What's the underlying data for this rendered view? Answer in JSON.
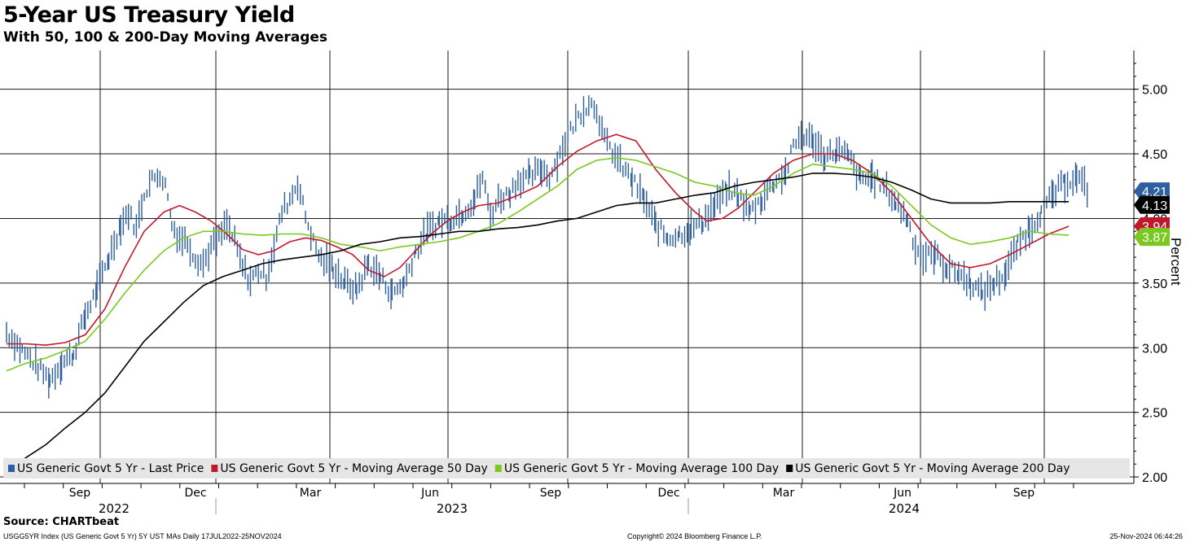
{
  "header": {
    "title": "5-Year US Treasury Yield",
    "subtitle": "With 50, 100 & 200-Day Moving Averages"
  },
  "footer": {
    "source": "Source: CHARTbeat",
    "index_info": "USGG5YR Index (US Generic Govt 5 Yr) 5Y UST MAs  Daily 17JUL2022-25NOV2024",
    "copyright": "Copyright© 2024 Bloomberg Finance L.P.",
    "timestamp": "25-Nov-2024 06:44:26"
  },
  "colors": {
    "price": "#2e5f9e",
    "ma50": "#c0192d",
    "ma100": "#7bc820",
    "ma200": "#000000",
    "grid": "#1a1a1a",
    "legend_bg": "#e6e6e6"
  },
  "chart_data": {
    "type": "line",
    "title": "5-Year US Treasury Yield",
    "subtitle": "With 50, 100 & 200-Day Moving Averages",
    "ylabel": "Percent",
    "ylim": [
      1.95,
      5.3
    ],
    "yticks": [
      2.0,
      2.5,
      3.0,
      3.5,
      4.0,
      4.5,
      5.0
    ],
    "ytick_labels": [
      "2.00",
      "2.50",
      "3.00",
      "3.50",
      "4.00",
      "4.50",
      "5.00"
    ],
    "x_range": [
      "2022-07-17",
      "2024-11-25"
    ],
    "x_month_ticks": [
      "Aug",
      "Sep",
      "Oct",
      "Nov",
      "Dec",
      "Jan",
      "Feb",
      "Mar",
      "Apr",
      "May",
      "Jun",
      "Jul",
      "Aug",
      "Sep",
      "Oct",
      "Nov",
      "Dec",
      "Jan",
      "Feb",
      "Mar",
      "Apr",
      "May",
      "Jun",
      "Jul",
      "Aug",
      "Sep",
      "Oct",
      "Nov"
    ],
    "x_month_labels": [
      "Sep",
      "Dec",
      "Mar",
      "Jun",
      "Sep",
      "Dec",
      "Mar",
      "Jun",
      "Sep"
    ],
    "x_years": [
      "2022",
      "2023",
      "2024"
    ],
    "legend_position": "bottom",
    "series": [
      {
        "name": "US Generic Govt 5 Yr - Last Price",
        "key": "price",
        "style": "bar",
        "last_value": "4.21",
        "points": [
          [
            0,
            3.12
          ],
          [
            0.4,
            2.98
          ],
          [
            0.8,
            2.85
          ],
          [
            1.1,
            2.75
          ],
          [
            1.4,
            2.88
          ],
          [
            1.7,
            2.95
          ],
          [
            2.0,
            3.25
          ],
          [
            2.3,
            3.45
          ],
          [
            2.6,
            3.7
          ],
          [
            2.9,
            3.95
          ],
          [
            3.1,
            4.05
          ],
          [
            3.3,
            3.92
          ],
          [
            3.5,
            4.2
          ],
          [
            3.7,
            4.3
          ],
          [
            3.9,
            4.35
          ],
          [
            4.1,
            4.2
          ],
          [
            4.2,
            3.95
          ],
          [
            4.4,
            3.85
          ],
          [
            4.6,
            3.82
          ],
          [
            4.8,
            3.7
          ],
          [
            5.0,
            3.65
          ],
          [
            5.2,
            3.78
          ],
          [
            5.4,
            3.85
          ],
          [
            5.6,
            3.95
          ],
          [
            5.8,
            3.82
          ],
          [
            6.0,
            3.62
          ],
          [
            6.2,
            3.52
          ],
          [
            6.4,
            3.6
          ],
          [
            6.6,
            3.55
          ],
          [
            6.8,
            3.78
          ],
          [
            7.0,
            4.05
          ],
          [
            7.2,
            4.15
          ],
          [
            7.4,
            4.28
          ],
          [
            7.6,
            4.02
          ],
          [
            7.8,
            3.82
          ],
          [
            8.0,
            3.68
          ],
          [
            8.3,
            3.62
          ],
          [
            8.6,
            3.5
          ],
          [
            8.9,
            3.45
          ],
          [
            9.2,
            3.65
          ],
          [
            9.5,
            3.55
          ],
          [
            9.8,
            3.42
          ],
          [
            10.1,
            3.5
          ],
          [
            10.4,
            3.75
          ],
          [
            10.7,
            3.9
          ],
          [
            11.0,
            3.98
          ],
          [
            11.3,
            4.0
          ],
          [
            11.6,
            4.05
          ],
          [
            11.9,
            4.15
          ],
          [
            12.1,
            4.32
          ],
          [
            12.3,
            4.02
          ],
          [
            12.5,
            4.15
          ],
          [
            12.8,
            4.2
          ],
          [
            13.0,
            4.3
          ],
          [
            13.3,
            4.32
          ],
          [
            13.6,
            4.38
          ],
          [
            13.8,
            4.33
          ],
          [
            14.0,
            4.45
          ],
          [
            14.2,
            4.6
          ],
          [
            14.4,
            4.72
          ],
          [
            14.6,
            4.82
          ],
          [
            14.8,
            4.9
          ],
          [
            15.0,
            4.85
          ],
          [
            15.2,
            4.6
          ],
          [
            15.4,
            4.52
          ],
          [
            15.6,
            4.42
          ],
          [
            15.9,
            4.3
          ],
          [
            16.2,
            4.15
          ],
          [
            16.5,
            3.95
          ],
          [
            16.8,
            3.85
          ],
          [
            17.1,
            3.88
          ],
          [
            17.4,
            3.92
          ],
          [
            17.7,
            3.98
          ],
          [
            18.0,
            4.1
          ],
          [
            18.3,
            4.22
          ],
          [
            18.6,
            4.18
          ],
          [
            18.9,
            4.05
          ],
          [
            19.2,
            4.15
          ],
          [
            19.5,
            4.28
          ],
          [
            19.8,
            4.35
          ],
          [
            20.0,
            4.55
          ],
          [
            20.2,
            4.65
          ],
          [
            20.5,
            4.6
          ],
          [
            20.8,
            4.48
          ],
          [
            21.1,
            4.52
          ],
          [
            21.4,
            4.48
          ],
          [
            21.7,
            4.3
          ],
          [
            22.0,
            4.32
          ],
          [
            22.3,
            4.25
          ],
          [
            22.6,
            4.12
          ],
          [
            22.9,
            4.0
          ],
          [
            23.1,
            3.78
          ],
          [
            23.3,
            3.7
          ],
          [
            23.6,
            3.72
          ],
          [
            23.9,
            3.62
          ],
          [
            24.2,
            3.58
          ],
          [
            24.5,
            3.5
          ],
          [
            24.8,
            3.42
          ],
          [
            25.1,
            3.5
          ],
          [
            25.4,
            3.58
          ],
          [
            25.7,
            3.8
          ],
          [
            26.0,
            3.92
          ],
          [
            26.3,
            4.05
          ],
          [
            26.6,
            4.18
          ],
          [
            26.9,
            4.28
          ],
          [
            27.2,
            4.32
          ],
          [
            27.4,
            4.25
          ],
          [
            27.5,
            4.21
          ]
        ]
      },
      {
        "name": "US Generic Govt 5 Yr - Moving Average 50 Day",
        "key": "ma50",
        "style": "line",
        "last_value": "3.94",
        "points": [
          [
            0,
            3.03
          ],
          [
            0.5,
            3.03
          ],
          [
            1.0,
            3.02
          ],
          [
            1.5,
            3.04
          ],
          [
            2.0,
            3.1
          ],
          [
            2.5,
            3.3
          ],
          [
            3.0,
            3.62
          ],
          [
            3.5,
            3.9
          ],
          [
            4.0,
            4.05
          ],
          [
            4.4,
            4.1
          ],
          [
            4.8,
            4.05
          ],
          [
            5.2,
            3.98
          ],
          [
            5.6,
            3.88
          ],
          [
            6.0,
            3.76
          ],
          [
            6.4,
            3.72
          ],
          [
            6.8,
            3.75
          ],
          [
            7.2,
            3.82
          ],
          [
            7.6,
            3.85
          ],
          [
            8.0,
            3.83
          ],
          [
            8.4,
            3.78
          ],
          [
            8.8,
            3.72
          ],
          [
            9.2,
            3.6
          ],
          [
            9.6,
            3.55
          ],
          [
            10.0,
            3.62
          ],
          [
            10.4,
            3.75
          ],
          [
            10.8,
            3.88
          ],
          [
            11.2,
            3.98
          ],
          [
            11.6,
            4.05
          ],
          [
            12.0,
            4.1
          ],
          [
            12.5,
            4.12
          ],
          [
            13.0,
            4.18
          ],
          [
            13.5,
            4.25
          ],
          [
            14.0,
            4.4
          ],
          [
            14.5,
            4.52
          ],
          [
            15.0,
            4.6
          ],
          [
            15.5,
            4.65
          ],
          [
            16.0,
            4.6
          ],
          [
            16.5,
            4.38
          ],
          [
            17.0,
            4.2
          ],
          [
            17.5,
            4.05
          ],
          [
            17.8,
            3.98
          ],
          [
            18.2,
            4.0
          ],
          [
            18.6,
            4.08
          ],
          [
            19.0,
            4.2
          ],
          [
            19.5,
            4.35
          ],
          [
            20.0,
            4.45
          ],
          [
            20.5,
            4.5
          ],
          [
            21.0,
            4.5
          ],
          [
            21.5,
            4.45
          ],
          [
            22.0,
            4.35
          ],
          [
            22.5,
            4.2
          ],
          [
            23.0,
            4.0
          ],
          [
            23.5,
            3.8
          ],
          [
            24.0,
            3.65
          ],
          [
            24.5,
            3.62
          ],
          [
            25.0,
            3.65
          ],
          [
            25.5,
            3.72
          ],
          [
            26.0,
            3.8
          ],
          [
            26.5,
            3.88
          ],
          [
            27.0,
            3.94
          ]
        ]
      },
      {
        "name": "US Generic Govt 5 Yr - Moving Average 100 Day",
        "key": "ma100",
        "style": "line",
        "last_value": "3.87",
        "points": [
          [
            0,
            2.82
          ],
          [
            0.5,
            2.88
          ],
          [
            1.0,
            2.92
          ],
          [
            1.5,
            2.98
          ],
          [
            2.0,
            3.05
          ],
          [
            2.5,
            3.22
          ],
          [
            3.0,
            3.42
          ],
          [
            3.5,
            3.6
          ],
          [
            4.0,
            3.75
          ],
          [
            4.5,
            3.85
          ],
          [
            5.0,
            3.9
          ],
          [
            5.5,
            3.9
          ],
          [
            6.0,
            3.88
          ],
          [
            6.5,
            3.87
          ],
          [
            7.0,
            3.88
          ],
          [
            7.5,
            3.88
          ],
          [
            8.0,
            3.85
          ],
          [
            8.5,
            3.8
          ],
          [
            9.0,
            3.78
          ],
          [
            9.5,
            3.75
          ],
          [
            10.0,
            3.78
          ],
          [
            10.5,
            3.8
          ],
          [
            11.0,
            3.82
          ],
          [
            11.5,
            3.85
          ],
          [
            12.0,
            3.9
          ],
          [
            12.5,
            3.96
          ],
          [
            13.0,
            4.05
          ],
          [
            13.5,
            4.15
          ],
          [
            14.0,
            4.25
          ],
          [
            14.5,
            4.38
          ],
          [
            15.0,
            4.45
          ],
          [
            15.5,
            4.47
          ],
          [
            16.0,
            4.45
          ],
          [
            16.5,
            4.4
          ],
          [
            17.0,
            4.35
          ],
          [
            17.5,
            4.28
          ],
          [
            18.0,
            4.25
          ],
          [
            18.5,
            4.2
          ],
          [
            19.0,
            4.18
          ],
          [
            19.5,
            4.25
          ],
          [
            20.0,
            4.35
          ],
          [
            20.5,
            4.42
          ],
          [
            21.0,
            4.4
          ],
          [
            21.5,
            4.38
          ],
          [
            22.0,
            4.35
          ],
          [
            22.5,
            4.25
          ],
          [
            23.0,
            4.1
          ],
          [
            23.5,
            3.95
          ],
          [
            24.0,
            3.85
          ],
          [
            24.5,
            3.8
          ],
          [
            25.0,
            3.82
          ],
          [
            25.5,
            3.85
          ],
          [
            26.0,
            3.9
          ],
          [
            26.5,
            3.88
          ],
          [
            27.0,
            3.87
          ]
        ]
      },
      {
        "name": "US Generic Govt 5 Yr - Moving Average 200 Day",
        "key": "ma200",
        "style": "line",
        "last_value": "4.13",
        "points": [
          [
            0,
            2.05
          ],
          [
            0.5,
            2.15
          ],
          [
            1.0,
            2.25
          ],
          [
            1.5,
            2.38
          ],
          [
            2.0,
            2.5
          ],
          [
            2.5,
            2.65
          ],
          [
            3.0,
            2.85
          ],
          [
            3.5,
            3.05
          ],
          [
            4.0,
            3.2
          ],
          [
            4.5,
            3.35
          ],
          [
            5.0,
            3.48
          ],
          [
            5.5,
            3.55
          ],
          [
            6.0,
            3.6
          ],
          [
            6.5,
            3.65
          ],
          [
            7.0,
            3.68
          ],
          [
            7.5,
            3.7
          ],
          [
            8.0,
            3.72
          ],
          [
            8.5,
            3.75
          ],
          [
            9.0,
            3.8
          ],
          [
            9.5,
            3.82
          ],
          [
            10.0,
            3.85
          ],
          [
            10.5,
            3.86
          ],
          [
            11.0,
            3.88
          ],
          [
            11.5,
            3.9
          ],
          [
            12.0,
            3.9
          ],
          [
            12.5,
            3.92
          ],
          [
            13.0,
            3.93
          ],
          [
            13.5,
            3.95
          ],
          [
            14.0,
            3.98
          ],
          [
            14.5,
            4.0
          ],
          [
            15.0,
            4.05
          ],
          [
            15.5,
            4.1
          ],
          [
            16.0,
            4.12
          ],
          [
            16.5,
            4.12
          ],
          [
            17.0,
            4.15
          ],
          [
            17.5,
            4.18
          ],
          [
            18.0,
            4.2
          ],
          [
            18.5,
            4.25
          ],
          [
            19.0,
            4.28
          ],
          [
            19.5,
            4.3
          ],
          [
            20.0,
            4.32
          ],
          [
            20.5,
            4.35
          ],
          [
            21.0,
            4.35
          ],
          [
            21.5,
            4.34
          ],
          [
            22.0,
            4.32
          ],
          [
            22.5,
            4.28
          ],
          [
            23.0,
            4.22
          ],
          [
            23.5,
            4.15
          ],
          [
            24.0,
            4.12
          ],
          [
            24.5,
            4.12
          ],
          [
            25.0,
            4.12
          ],
          [
            25.5,
            4.13
          ],
          [
            26.0,
            4.13
          ],
          [
            26.5,
            4.13
          ],
          [
            27.0,
            4.13
          ]
        ]
      }
    ]
  }
}
